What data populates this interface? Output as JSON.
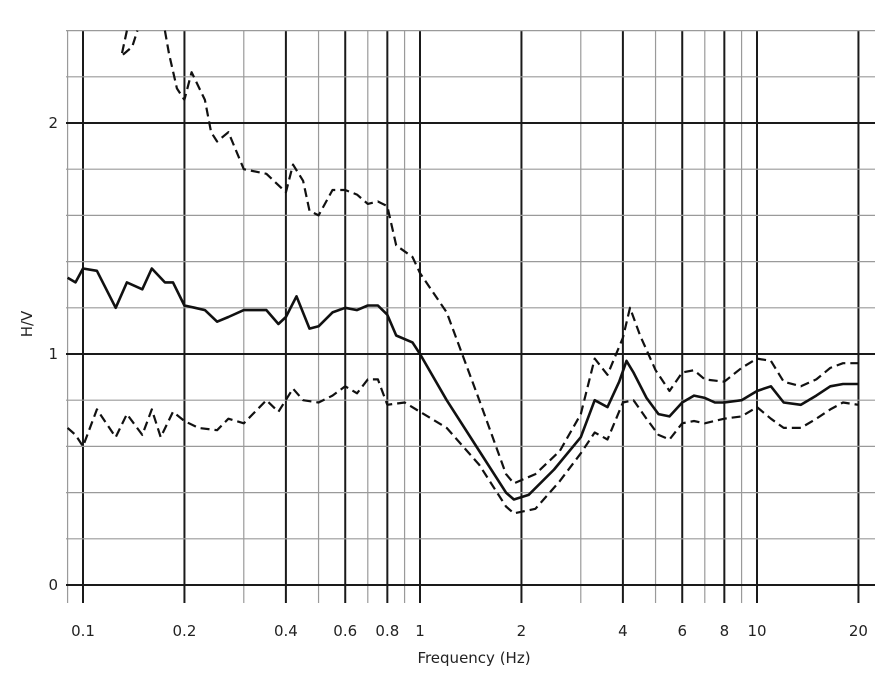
{
  "chart_data": {
    "type": "line",
    "title": "",
    "xlabel": "Frequency (Hz)",
    "ylabel": "H/V",
    "x_scale": "log",
    "xlim": [
      0.09,
      20
    ],
    "ylim": [
      -0.05,
      2.4
    ],
    "grid": true,
    "legend": "none",
    "x_ticks": [
      {
        "value": 0.1,
        "label": "0.1"
      },
      {
        "value": 0.2,
        "label": "0.2"
      },
      {
        "value": 0.4,
        "label": "0.4"
      },
      {
        "value": 0.6,
        "label": "0.6"
      },
      {
        "value": 0.8,
        "label": "0.8"
      },
      {
        "value": 1,
        "label": "1"
      },
      {
        "value": 2,
        "label": "2"
      },
      {
        "value": 4,
        "label": "4"
      },
      {
        "value": 6,
        "label": "6"
      },
      {
        "value": 8,
        "label": "8"
      },
      {
        "value": 10,
        "label": "10"
      },
      {
        "value": 20,
        "label": "20"
      }
    ],
    "y_ticks": [
      {
        "value": 0,
        "label": "0"
      },
      {
        "value": 1,
        "label": "1"
      },
      {
        "value": 2,
        "label": "2"
      }
    ],
    "series": [
      {
        "style": "solid",
        "x": [
          0.09,
          0.095,
          0.1,
          0.11,
          0.125,
          0.135,
          0.15,
          0.16,
          0.175,
          0.185,
          0.2,
          0.215,
          0.23,
          0.25,
          0.27,
          0.3,
          0.35,
          0.38,
          0.4,
          0.43,
          0.47,
          0.5,
          0.55,
          0.6,
          0.65,
          0.7,
          0.75,
          0.8,
          0.85,
          0.95,
          1.0,
          1.2,
          1.5,
          1.8,
          1.9,
          2.1,
          2.5,
          3.0,
          3.3,
          3.6,
          3.9,
          4.1,
          4.3,
          4.7,
          5.1,
          5.5,
          6.0,
          6.5,
          7.0,
          7.5,
          8.0,
          9.0,
          10.0,
          11.0,
          12.0,
          13.5,
          15.0,
          16.5,
          18.0,
          20.0
        ],
        "y": [
          1.33,
          1.31,
          1.37,
          1.36,
          1.2,
          1.31,
          1.28,
          1.37,
          1.31,
          1.31,
          1.21,
          1.2,
          1.19,
          1.14,
          1.16,
          1.19,
          1.19,
          1.13,
          1.16,
          1.25,
          1.11,
          1.12,
          1.18,
          1.2,
          1.19,
          1.21,
          1.21,
          1.17,
          1.08,
          1.05,
          1.0,
          0.8,
          0.58,
          0.4,
          0.37,
          0.39,
          0.5,
          0.64,
          0.8,
          0.77,
          0.88,
          0.97,
          0.92,
          0.81,
          0.74,
          0.73,
          0.79,
          0.82,
          0.81,
          0.79,
          0.79,
          0.8,
          0.84,
          0.86,
          0.79,
          0.78,
          0.82,
          0.86,
          0.87,
          0.87
        ]
      },
      {
        "style": "dashed",
        "x": [
          0.135,
          0.13,
          0.14,
          0.145
        ],
        "y": [
          2.4,
          2.29,
          2.33,
          2.4
        ]
      },
      {
        "style": "dashed",
        "x": [
          0.175,
          0.18,
          0.19,
          0.2,
          0.21,
          0.23,
          0.24,
          0.25,
          0.27,
          0.3,
          0.35,
          0.4,
          0.42,
          0.45,
          0.47,
          0.5,
          0.55,
          0.6,
          0.65,
          0.7,
          0.75,
          0.8,
          0.85,
          0.95,
          1.0,
          1.2,
          1.5,
          1.8,
          1.9,
          2.2,
          2.6,
          3.0,
          3.3,
          3.6,
          4.0,
          4.2,
          4.5,
          5.0,
          5.5,
          6.0,
          6.5,
          7.0,
          8.0,
          9.0,
          10.0,
          11.0,
          12.0,
          13.5,
          15.0,
          16.5,
          18.0,
          20.0
        ],
        "y": [
          2.4,
          2.3,
          2.15,
          2.1,
          2.22,
          2.1,
          1.96,
          1.92,
          1.96,
          1.8,
          1.78,
          1.7,
          1.82,
          1.75,
          1.62,
          1.6,
          1.71,
          1.71,
          1.69,
          1.65,
          1.66,
          1.64,
          1.47,
          1.42,
          1.35,
          1.18,
          0.8,
          0.48,
          0.44,
          0.48,
          0.58,
          0.74,
          0.98,
          0.91,
          1.07,
          1.2,
          1.08,
          0.93,
          0.84,
          0.92,
          0.93,
          0.89,
          0.88,
          0.94,
          0.98,
          0.97,
          0.88,
          0.86,
          0.89,
          0.94,
          0.96,
          0.96
        ]
      },
      {
        "style": "dashed",
        "x": [
          0.09,
          0.095,
          0.1,
          0.11,
          0.125,
          0.135,
          0.15,
          0.16,
          0.17,
          0.185,
          0.2,
          0.22,
          0.25,
          0.27,
          0.3,
          0.35,
          0.38,
          0.42,
          0.45,
          0.5,
          0.55,
          0.6,
          0.65,
          0.7,
          0.75,
          0.8,
          0.9,
          1.0,
          1.2,
          1.5,
          1.8,
          1.9,
          2.2,
          2.6,
          3.0,
          3.3,
          3.6,
          4.0,
          4.3,
          4.7,
          5.1,
          5.5,
          6.0,
          6.5,
          7.0,
          8.0,
          9.0,
          10.0,
          11.0,
          12.0,
          13.5,
          15.0,
          16.5,
          18.0,
          20.0
        ],
        "y": [
          0.68,
          0.65,
          0.6,
          0.76,
          0.64,
          0.74,
          0.65,
          0.76,
          0.64,
          0.75,
          0.71,
          0.68,
          0.67,
          0.72,
          0.7,
          0.8,
          0.75,
          0.85,
          0.8,
          0.79,
          0.82,
          0.86,
          0.83,
          0.89,
          0.89,
          0.78,
          0.79,
          0.75,
          0.68,
          0.52,
          0.34,
          0.31,
          0.33,
          0.45,
          0.57,
          0.66,
          0.63,
          0.79,
          0.8,
          0.72,
          0.65,
          0.63,
          0.7,
          0.71,
          0.7,
          0.72,
          0.73,
          0.77,
          0.72,
          0.68,
          0.68,
          0.72,
          0.76,
          0.79,
          0.78
        ]
      }
    ]
  }
}
